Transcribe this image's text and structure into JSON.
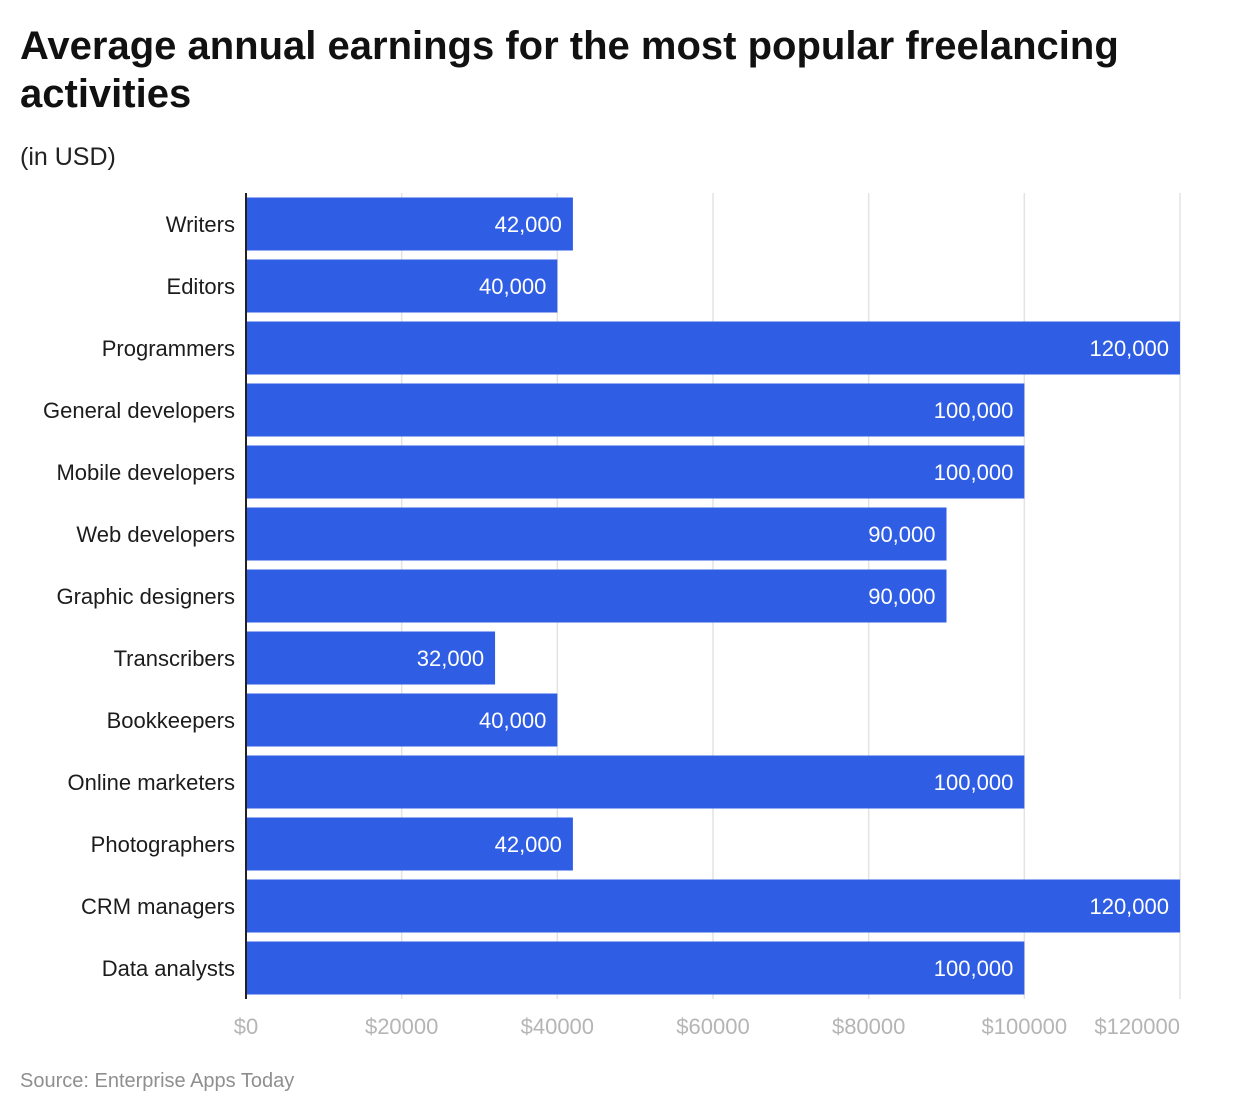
{
  "title": "Average annual earnings for the most popular freelancing activities",
  "subtitle": "(in USD)",
  "source": "Source: Enterprise Apps Today",
  "colors": {
    "bar": "#2f5ee5",
    "grid": "#e3e3e3",
    "axis": "#222222",
    "tick_text": "#b5b5b5"
  },
  "chart_data": {
    "type": "bar",
    "orientation": "horizontal",
    "categories": [
      "Writers",
      "Editors",
      "Programmers",
      "General developers",
      "Mobile developers",
      "Web developers",
      "Graphic designers",
      "Transcribers",
      "Bookkeepers",
      "Online marketers",
      "Photographers",
      "CRM managers",
      "Data analysts"
    ],
    "values": [
      42000,
      40000,
      120000,
      100000,
      100000,
      90000,
      90000,
      32000,
      40000,
      100000,
      42000,
      120000,
      100000
    ],
    "value_labels": [
      "42,000",
      "40,000",
      "120,000",
      "100,000",
      "100,000",
      "90,000",
      "90,000",
      "32,000",
      "40,000",
      "100,000",
      "42,000",
      "120,000",
      "100,000"
    ],
    "xlim": [
      0,
      120000
    ],
    "ticks": [
      0,
      20000,
      40000,
      60000,
      80000,
      100000,
      120000
    ],
    "tick_labels": [
      "$0",
      "$20000",
      "$40000",
      "$60000",
      "$80000",
      "$100000",
      "$120000"
    ],
    "grid": true,
    "legend": "none"
  }
}
